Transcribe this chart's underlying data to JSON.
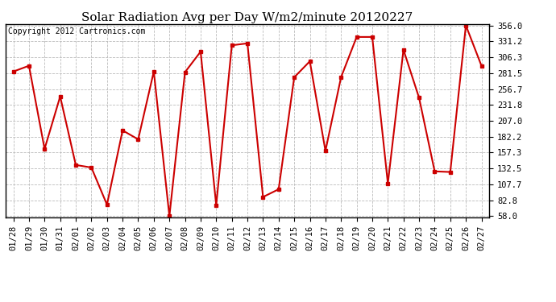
{
  "title": "Solar Radiation Avg per Day W/m2/minute 20120227",
  "copyright": "Copyright 2012 Cartronics.com",
  "dates": [
    "01/28",
    "01/29",
    "01/30",
    "01/31",
    "02/01",
    "02/02",
    "02/03",
    "02/04",
    "02/05",
    "02/06",
    "02/07",
    "02/08",
    "02/09",
    "02/10",
    "02/11",
    "02/12",
    "02/13",
    "02/14",
    "02/15",
    "02/16",
    "02/17",
    "02/18",
    "02/19",
    "02/20",
    "02/21",
    "02/22",
    "02/23",
    "02/24",
    "02/25",
    "02/26",
    "02/27"
  ],
  "values": [
    284,
    293,
    163,
    245,
    138,
    134,
    76,
    192,
    178,
    284,
    58,
    283,
    315,
    75,
    325,
    328,
    88,
    100,
    275,
    300,
    160,
    275,
    338,
    338,
    109,
    318,
    243,
    128,
    127,
    356,
    293
  ],
  "yticks": [
    58.0,
    82.8,
    107.7,
    132.5,
    157.3,
    182.2,
    207.0,
    231.8,
    256.7,
    281.5,
    306.3,
    331.2,
    356.0
  ],
  "ymin": 58.0,
  "ymax": 356.0,
  "line_color": "#cc0000",
  "marker_color": "#cc0000",
  "bg_color": "#ffffff",
  "grid_color": "#bbbbbb",
  "title_fontsize": 11,
  "copyright_fontsize": 7,
  "tick_fontsize": 7.5
}
